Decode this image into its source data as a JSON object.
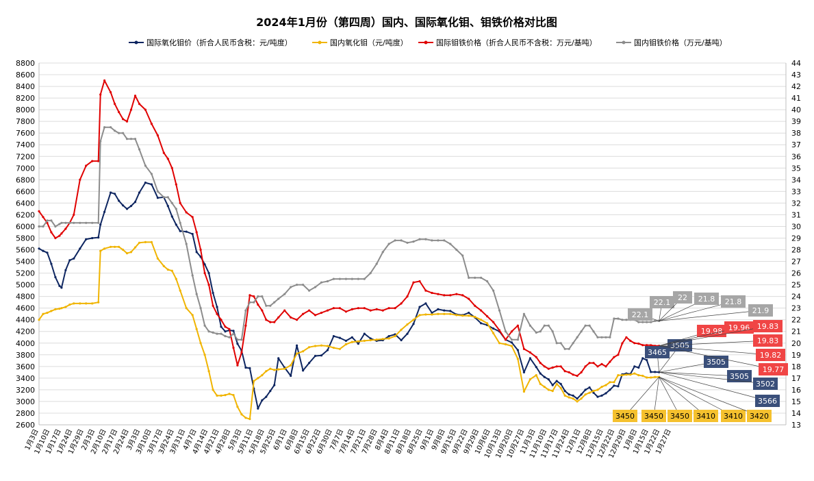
{
  "chart_data": {
    "type": "line",
    "title": "2024年1月份（第四周）国内、国际氧化钼、钼铁价格对比图",
    "x_tick_labels": [
      "1月3日",
      "1月10日",
      "1月17日",
      "1月24日",
      "1月29日",
      "2月3日",
      "2月10日",
      "2月17日",
      "2月24日",
      "3月3日",
      "3月10日",
      "3月17日",
      "3月24日",
      "3月31日",
      "4月7日",
      "4月14日",
      "4月21日",
      "4月28日",
      "5月3日",
      "5月11日",
      "5月18日",
      "5月25日",
      "6月1日",
      "6月8日",
      "6月15日",
      "6月22日",
      "6月30日",
      "7月7日",
      "7月14日",
      "7月21日",
      "7月28日",
      "8月4日",
      "8月11日",
      "8月18日",
      "8月25日",
      "9月1日",
      "9月8日",
      "9月15日",
      "9月22日",
      "9月29日",
      "10月6日",
      "10月13日",
      "10月20日",
      "10月27日",
      "11月3日",
      "11月10日",
      "11月17日",
      "11月24日",
      "12月1日",
      "12月8日",
      "12月15日",
      "12月22日",
      "12月29日",
      "1月8日",
      "1月15日",
      "1月22日",
      "1月27日"
    ],
    "y_left": {
      "min": 2600,
      "max": 8800,
      "step": 200
    },
    "y_right": {
      "min": 13,
      "max": 44,
      "step": 1
    },
    "grid": true,
    "legend_position": "top",
    "series": [
      {
        "name": "国际氧化钼价（折合人民币含税：元/吨度）",
        "axis": "left",
        "color": "#0d2560",
        "x": [
          0,
          2,
          4,
          6,
          8,
          10,
          11,
          13,
          15,
          17,
          20,
          23,
          26,
          29,
          30,
          32,
          35,
          37,
          39,
          41,
          43,
          45,
          47,
          49,
          52,
          55,
          58,
          61,
          63,
          65,
          67,
          69,
          72,
          75,
          77,
          79,
          81,
          83,
          85,
          87,
          89,
          91,
          93,
          95,
          97,
          99,
          101,
          103,
          105,
          107,
          109,
          111,
          113,
          115,
          117,
          120,
          123,
          126,
          129,
          132,
          135,
          138,
          141,
          144,
          147,
          150,
          153,
          156,
          159,
          162,
          165,
          168,
          171,
          174,
          177,
          180,
          183,
          186,
          189,
          192,
          195,
          198,
          201,
          204,
          207,
          210,
          213,
          216,
          219,
          222,
          225,
          228,
          231,
          234,
          237,
          240,
          243,
          245,
          247,
          249,
          251,
          253,
          255,
          257,
          259,
          261,
          263,
          265,
          267,
          269,
          271,
          273,
          275,
          277,
          279,
          281,
          283,
          285,
          287,
          289,
          291,
          293,
          295,
          297,
          299,
          301,
          303
        ],
        "values": [
          5620,
          5580,
          5550,
          5360,
          5130,
          4980,
          4950,
          5250,
          5420,
          5450,
          5620,
          5780,
          5800,
          5810,
          6030,
          6250,
          6580,
          6560,
          6440,
          6360,
          6300,
          6350,
          6420,
          6580,
          6750,
          6720,
          6490,
          6500,
          6350,
          6170,
          6030,
          5920,
          5910,
          5870,
          5560,
          5480,
          5350,
          5200,
          4860,
          4620,
          4280,
          4200,
          4220,
          4210,
          3990,
          3870,
          3580,
          3570,
          3220,
          2880,
          3020,
          3080,
          3180,
          3280,
          3740,
          3580,
          3440,
          3960,
          3530,
          3660,
          3780,
          3790,
          3880,
          4120,
          4090,
          4040,
          4100,
          3990,
          4160,
          4080,
          4040,
          4050,
          4120,
          4150,
          4050,
          4160,
          4330,
          4620,
          4680,
          4520,
          4580,
          4560,
          4550,
          4490,
          4480,
          4520,
          4440,
          4340,
          4310,
          4250,
          4200,
          4060,
          4010,
          3880,
          3500,
          3740,
          3590,
          3480,
          3420,
          3380,
          3280,
          3350,
          3300,
          3180,
          3120,
          3100,
          3050,
          3120,
          3200,
          3240,
          3150,
          3080,
          3100,
          3140,
          3200,
          3270,
          3260,
          3465,
          3480,
          3470,
          3600,
          3580,
          3740,
          3710,
          3505,
          3505,
          3502
        ]
      },
      {
        "name": "国内氧化钼（元/吨度）",
        "axis": "left",
        "color": "#f0b400",
        "x": [
          0,
          2,
          4,
          6,
          8,
          10,
          11,
          13,
          15,
          17,
          20,
          23,
          26,
          29,
          30,
          32,
          35,
          37,
          39,
          41,
          43,
          45,
          47,
          49,
          52,
          55,
          58,
          61,
          63,
          65,
          67,
          69,
          72,
          75,
          77,
          79,
          81,
          83,
          85,
          87,
          89,
          91,
          93,
          95,
          97,
          99,
          101,
          103,
          105,
          107,
          109,
          111,
          113,
          115,
          117,
          120,
          123,
          126,
          129,
          132,
          135,
          138,
          141,
          144,
          147,
          150,
          153,
          156,
          159,
          162,
          165,
          168,
          171,
          174,
          177,
          180,
          183,
          186,
          189,
          192,
          195,
          198,
          201,
          204,
          207,
          210,
          213,
          216,
          219,
          222,
          225,
          228,
          231,
          234,
          237,
          240,
          243,
          245,
          247,
          249,
          251,
          253,
          255,
          257,
          259,
          261,
          263,
          265,
          267,
          269,
          271,
          273,
          275,
          277,
          279,
          281,
          283,
          285,
          287,
          289,
          291,
          293,
          295,
          297,
          299,
          301,
          303
        ],
        "values": [
          4400,
          4500,
          4520,
          4550,
          4580,
          4590,
          4600,
          4620,
          4660,
          4680,
          4680,
          4680,
          4680,
          4700,
          5580,
          5620,
          5650,
          5650,
          5650,
          5600,
          5540,
          5560,
          5640,
          5720,
          5730,
          5730,
          5450,
          5320,
          5260,
          5240,
          5100,
          4900,
          4600,
          4480,
          4240,
          4000,
          3800,
          3520,
          3200,
          3100,
          3100,
          3110,
          3130,
          3110,
          2910,
          2780,
          2720,
          2700,
          3350,
          3400,
          3450,
          3520,
          3560,
          3540,
          3550,
          3560,
          3620,
          3820,
          3860,
          3930,
          3950,
          3960,
          3950,
          3920,
          3900,
          3980,
          4020,
          4030,
          4040,
          4050,
          4060,
          4070,
          4080,
          4120,
          4230,
          4320,
          4400,
          4480,
          4490,
          4490,
          4500,
          4500,
          4500,
          4480,
          4470,
          4470,
          4450,
          4400,
          4340,
          4170,
          4000,
          3980,
          3950,
          3730,
          3170,
          3380,
          3450,
          3300,
          3250,
          3200,
          3180,
          3300,
          3230,
          3100,
          3070,
          3050,
          3000,
          3050,
          3120,
          3150,
          3180,
          3200,
          3250,
          3280,
          3330,
          3330,
          3450,
          3450,
          3460,
          3460,
          3480,
          3450,
          3440,
          3410,
          3410,
          3420,
          3420
        ]
      },
      {
        "name": "国际钼铁价格（折合人民币不含税：万元/基吨）",
        "axis": "right",
        "color": "#e00000",
        "x": [
          0,
          2,
          4,
          6,
          8,
          10,
          11,
          13,
          15,
          17,
          20,
          23,
          26,
          29,
          30,
          32,
          35,
          37,
          39,
          41,
          43,
          45,
          47,
          49,
          52,
          55,
          58,
          61,
          63,
          65,
          67,
          69,
          72,
          75,
          77,
          79,
          81,
          83,
          85,
          87,
          89,
          91,
          93,
          95,
          97,
          99,
          101,
          103,
          105,
          107,
          109,
          111,
          113,
          115,
          117,
          120,
          123,
          126,
          129,
          132,
          135,
          138,
          141,
          144,
          147,
          150,
          153,
          156,
          159,
          162,
          165,
          168,
          171,
          174,
          177,
          180,
          183,
          186,
          189,
          192,
          195,
          198,
          201,
          204,
          207,
          210,
          213,
          216,
          219,
          222,
          225,
          228,
          231,
          234,
          237,
          240,
          243,
          245,
          247,
          249,
          251,
          253,
          255,
          257,
          259,
          261,
          263,
          265,
          267,
          269,
          271,
          273,
          275,
          277,
          279,
          281,
          283,
          285,
          287,
          289,
          291,
          293,
          295,
          297,
          299,
          301,
          303
        ],
        "values": [
          31.3,
          30.8,
          30.3,
          29.5,
          29.0,
          29.2,
          29.4,
          29.8,
          30.3,
          31.0,
          34.0,
          35.2,
          35.6,
          35.6,
          41.3,
          42.5,
          41.5,
          40.5,
          39.8,
          39.2,
          39.0,
          40.0,
          41.2,
          40.5,
          40.0,
          38.8,
          37.8,
          36.3,
          35.8,
          35.0,
          33.6,
          32.0,
          31.2,
          30.8,
          29.5,
          28.0,
          26.0,
          25.0,
          23.2,
          22.5,
          22.0,
          21.4,
          21.2,
          19.6,
          18.1,
          19.2,
          21.5,
          24.1,
          24.0,
          23.3,
          22.8,
          22.0,
          21.8,
          21.8,
          22.2,
          22.8,
          22.2,
          22.0,
          22.5,
          22.8,
          22.4,
          22.6,
          22.8,
          23.0,
          23.0,
          22.7,
          22.9,
          23.0,
          23.0,
          22.8,
          22.9,
          22.8,
          23.0,
          23.0,
          23.4,
          24.0,
          25.2,
          25.3,
          24.5,
          24.3,
          24.2,
          24.1,
          24.1,
          24.2,
          24.1,
          23.8,
          23.2,
          22.8,
          22.3,
          21.8,
          21.1,
          20.3,
          21.0,
          21.5,
          19.5,
          19.2,
          18.8,
          18.3,
          18.0,
          17.8,
          17.9,
          18.0,
          18.0,
          17.6,
          17.5,
          17.3,
          17.2,
          17.5,
          18.0,
          18.3,
          18.3,
          18.0,
          18.2,
          18.0,
          18.4,
          18.8,
          19.0,
          19.98,
          20.5,
          20.2,
          20.0,
          19.96,
          19.83,
          19.83,
          19.82,
          19.77,
          19.77
        ]
      },
      {
        "name": "国内钼铁价格（万元/基吨）",
        "axis": "right",
        "color": "#8c8c8c",
        "x": [
          0,
          2,
          4,
          6,
          8,
          10,
          11,
          13,
          15,
          17,
          20,
          23,
          26,
          29,
          30,
          32,
          35,
          37,
          39,
          41,
          43,
          45,
          47,
          49,
          52,
          55,
          58,
          61,
          63,
          65,
          67,
          69,
          72,
          75,
          77,
          79,
          81,
          83,
          85,
          87,
          89,
          91,
          93,
          95,
          97,
          99,
          101,
          103,
          105,
          107,
          109,
          111,
          113,
          115,
          117,
          120,
          123,
          126,
          129,
          132,
          135,
          138,
          141,
          144,
          147,
          150,
          153,
          156,
          159,
          162,
          165,
          168,
          171,
          174,
          177,
          180,
          183,
          186,
          189,
          192,
          195,
          198,
          201,
          204,
          207,
          210,
          213,
          216,
          219,
          222,
          225,
          228,
          231,
          234,
          237,
          240,
          243,
          245,
          247,
          249,
          251,
          253,
          255,
          257,
          259,
          261,
          263,
          265,
          267,
          269,
          271,
          273,
          275,
          277,
          279,
          281,
          283,
          285,
          287,
          289,
          291,
          293,
          295,
          297,
          299,
          301,
          303
        ],
        "values": [
          30.0,
          30.0,
          30.5,
          30.5,
          30.0,
          30.2,
          30.3,
          30.3,
          30.3,
          30.3,
          30.3,
          30.3,
          30.3,
          30.3,
          37.3,
          38.5,
          38.5,
          38.2,
          38.0,
          38.0,
          37.5,
          37.5,
          37.5,
          36.6,
          35.2,
          34.5,
          33.0,
          32.5,
          32.5,
          32.0,
          31.5,
          30.3,
          28.5,
          25.8,
          24.2,
          23.0,
          21.5,
          21.0,
          20.9,
          20.8,
          20.8,
          20.6,
          20.5,
          20.8,
          20.3,
          20.3,
          22.8,
          23.5,
          23.5,
          24.0,
          24.0,
          23.2,
          23.2,
          23.5,
          23.8,
          24.2,
          24.8,
          25.0,
          25.0,
          24.5,
          24.8,
          25.2,
          25.3,
          25.5,
          25.5,
          25.5,
          25.5,
          25.5,
          25.5,
          26.0,
          26.8,
          27.8,
          28.5,
          28.8,
          28.8,
          28.6,
          28.7,
          28.9,
          28.9,
          28.8,
          28.8,
          28.8,
          28.5,
          28.0,
          27.5,
          25.6,
          25.6,
          25.6,
          25.3,
          24.5,
          22.8,
          21.0,
          20.3,
          20.3,
          22.5,
          21.5,
          20.9,
          21.0,
          21.5,
          21.5,
          21.0,
          20.0,
          20.0,
          19.5,
          19.5,
          20.0,
          20.5,
          21.0,
          21.5,
          21.5,
          21.0,
          20.5,
          20.5,
          20.5,
          20.5,
          22.1,
          22.1,
          22.0,
          22.0,
          22.0,
          22.0,
          21.8,
          21.8,
          21.8,
          21.8,
          21.9,
          21.9
        ]
      }
    ],
    "callouts": {
      "international_oxide": [
        "3465",
        "3505",
        "3505",
        "3505",
        "3502",
        "3566"
      ],
      "domestic_oxide": [
        "3450",
        "3450",
        "3450",
        "3410",
        "3410",
        "3420"
      ],
      "international_ferro": [
        "19.98",
        "19.96",
        "19.83",
        "19.83",
        "19.82",
        "19.77"
      ],
      "domestic_ferro": [
        "22.1",
        "22.1",
        "22",
        "21.8",
        "21.8",
        "21.9"
      ]
    }
  }
}
